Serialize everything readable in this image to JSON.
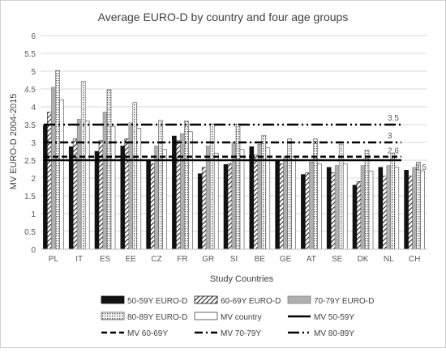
{
  "chart_data": {
    "type": "bar",
    "title": "Average EURO-D by country and four age groups",
    "xlabel": "Study Countries",
    "ylabel": "MV EURO-D 2004-2015",
    "ylim": [
      0,
      6
    ],
    "yticks": [
      "0",
      "0.5",
      "1",
      "1.5",
      "2",
      "2.5",
      "3",
      "3.5",
      "4",
      "4.5",
      "5",
      "5.5",
      "6"
    ],
    "grid": "horizontal",
    "legend_position": "bottom",
    "categories": [
      "PL",
      "IT",
      "ES",
      "EE",
      "CZ",
      "FR",
      "GR",
      "SI",
      "BE",
      "GE",
      "AT",
      "SE",
      "DK",
      "NL",
      "CH"
    ],
    "series": [
      {
        "name": "50-59Y EURO-D",
        "values": [
          3.48,
          2.88,
          2.75,
          2.9,
          2.5,
          3.18,
          2.12,
          2.38,
          2.88,
          2.5,
          2.1,
          2.3,
          1.8,
          2.3,
          2.22
        ]
      },
      {
        "name": "60-69Y EURO-D",
        "values": [
          3.85,
          3.1,
          3.05,
          3.1,
          2.4,
          3.05,
          2.3,
          2.4,
          2.65,
          2.4,
          2.15,
          2.15,
          1.9,
          2.05,
          2.05
        ]
      },
      {
        "name": "70-79Y EURO-D",
        "values": [
          4.55,
          3.65,
          3.85,
          3.55,
          2.9,
          3.25,
          2.9,
          3.0,
          2.95,
          2.6,
          2.45,
          2.35,
          2.35,
          2.35,
          2.3
        ]
      },
      {
        "name": "80-89Y EURO-D",
        "values": [
          5.02,
          4.72,
          4.48,
          4.12,
          3.62,
          3.6,
          3.52,
          3.52,
          3.2,
          3.1,
          3.1,
          2.95,
          2.78,
          2.7,
          2.45
        ]
      },
      {
        "name": "MV country",
        "values": [
          4.2,
          3.6,
          3.45,
          3.4,
          2.8,
          3.3,
          2.7,
          2.8,
          2.85,
          2.6,
          2.4,
          2.4,
          2.2,
          2.3,
          2.2
        ]
      }
    ],
    "reference_lines": [
      {
        "name": "MV 50-59Y",
        "value": 2.5,
        "label": "2.5",
        "style": "solid"
      },
      {
        "name": "MV 60-69Y",
        "value": 2.6,
        "label": "2.6",
        "style": "dashed"
      },
      {
        "name": "MV 70-79Y",
        "value": 3.0,
        "label": "3",
        "style": "dash-dot"
      },
      {
        "name": "MV 80-89Y",
        "value": 3.5,
        "label": "3.5",
        "style": "long-dash-dot-dot"
      }
    ]
  }
}
